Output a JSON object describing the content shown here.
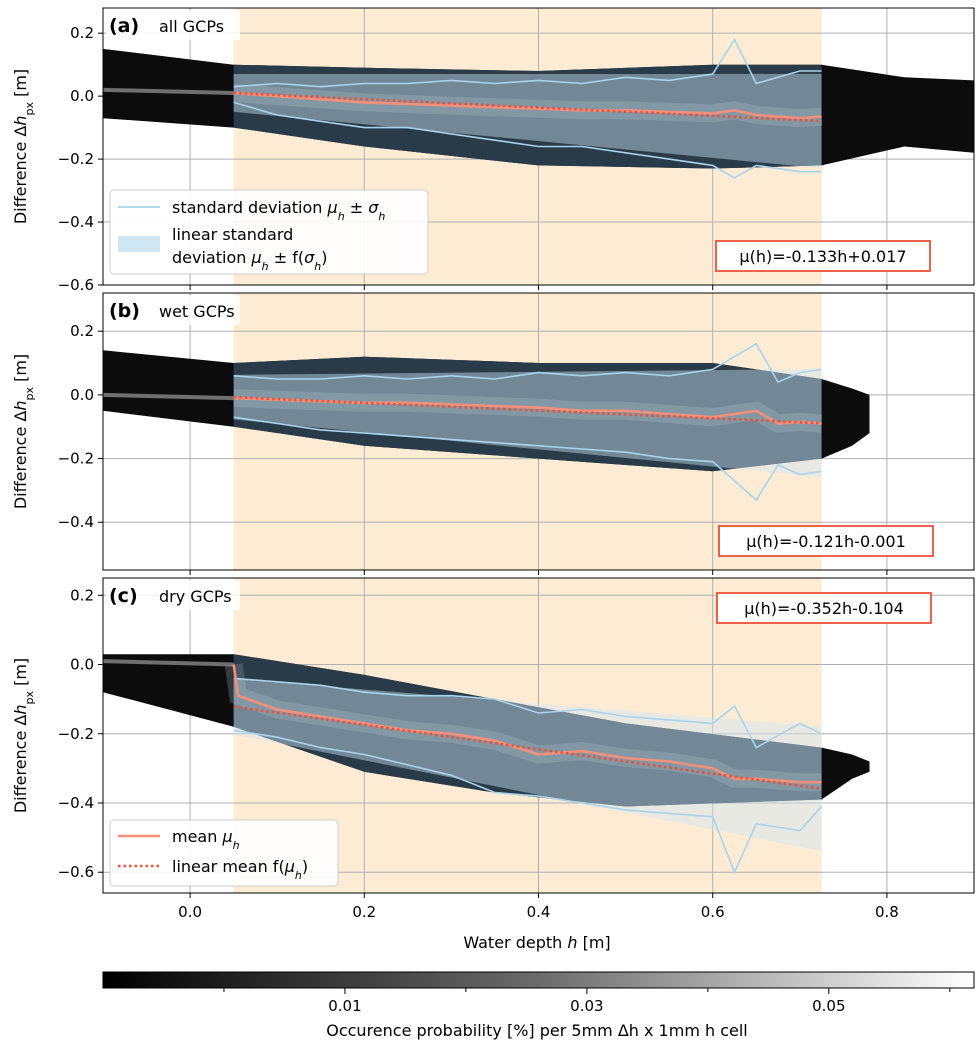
{
  "chart_data": {
    "type": "heatmap",
    "xlabel": "Water depth h [m]",
    "ylabel": "Difference Δh_px [m]",
    "xlim": [
      -0.1,
      0.9
    ],
    "x_ticks": [
      "0.0",
      "0.2",
      "0.4",
      "0.6",
      "0.8"
    ],
    "x_tick_values": [
      0.0,
      0.2,
      0.4,
      0.6,
      0.8
    ],
    "grid": true,
    "shaded_x_range": [
      0.05,
      0.725
    ],
    "shaded_color": "#fdebd3",
    "colors": {
      "mean": "#f4907a",
      "linear_mean": "#e8523b",
      "std": "#a9d3ec",
      "linear_std": "#cfe6f5",
      "eq_box": "#e8523b",
      "point_cloud": "#0c0c0c",
      "point_cloud_fit": "#2c4050"
    },
    "panels": [
      {
        "id": "a",
        "letter": "(a)",
        "label": "all GCPs",
        "equation": "μ(h)=-0.133h+0.017",
        "equation_position": "bottom-right",
        "ylim": [
          -0.6,
          0.28
        ],
        "y_tick_values": [
          0.2,
          0.0,
          -0.2,
          -0.4,
          -0.6
        ],
        "y_ticks": [
          "0.2",
          "0.0",
          "−0.2",
          "−0.4",
          "−0.6"
        ],
        "legend_position": "bottom-left",
        "legend": [
          {
            "label": "standard deviation μh ± σh",
            "style": "line"
          },
          {
            "label_line1": "linear standard",
            "label_line2": "deviation μh ± f(σh)",
            "style": "patch"
          }
        ],
        "linear_mean": {
          "slope": -0.133,
          "intercept": 0.017
        },
        "linear_std_half_width": [
          0.06,
          0.15
        ],
        "mean": {
          "x": [
            0.05,
            0.1,
            0.15,
            0.2,
            0.25,
            0.3,
            0.35,
            0.4,
            0.45,
            0.5,
            0.55,
            0.6,
            0.625,
            0.65,
            0.7,
            0.725
          ],
          "y": [
            0.01,
            0.0,
            -0.01,
            -0.02,
            -0.025,
            -0.03,
            -0.035,
            -0.04,
            -0.045,
            -0.045,
            -0.05,
            -0.055,
            -0.045,
            -0.06,
            -0.07,
            -0.065
          ]
        },
        "std_upper": {
          "x": [
            0.05,
            0.1,
            0.15,
            0.2,
            0.25,
            0.3,
            0.35,
            0.4,
            0.45,
            0.5,
            0.55,
            0.6,
            0.625,
            0.65,
            0.7,
            0.725
          ],
          "y": [
            0.03,
            0.04,
            0.03,
            0.04,
            0.04,
            0.05,
            0.04,
            0.05,
            0.04,
            0.06,
            0.05,
            0.07,
            0.18,
            0.04,
            0.08,
            0.08
          ]
        },
        "std_lower": {
          "x": [
            0.05,
            0.1,
            0.15,
            0.2,
            0.25,
            0.3,
            0.35,
            0.4,
            0.45,
            0.5,
            0.55,
            0.6,
            0.625,
            0.65,
            0.7,
            0.725
          ],
          "y": [
            -0.02,
            -0.06,
            -0.08,
            -0.1,
            -0.1,
            -0.12,
            -0.14,
            -0.16,
            -0.16,
            -0.18,
            -0.2,
            -0.22,
            -0.26,
            -0.22,
            -0.24,
            -0.24
          ]
        },
        "cloud": {
          "x": [
            -0.1,
            0.05,
            0.2,
            0.4,
            0.6,
            0.725,
            0.82,
            0.9
          ],
          "upper": [
            0.15,
            0.1,
            0.09,
            0.08,
            0.1,
            0.1,
            0.06,
            0.05
          ],
          "lower": [
            -0.07,
            -0.1,
            -0.16,
            -0.22,
            -0.23,
            -0.22,
            -0.16,
            -0.18
          ]
        }
      },
      {
        "id": "b",
        "letter": "(b)",
        "label": "wet GCPs",
        "equation": "μ(h)=-0.121h-0.001",
        "equation_position": "bottom-right",
        "ylim": [
          -0.55,
          0.32
        ],
        "y_tick_values": [
          0.2,
          0.0,
          -0.2,
          -0.4
        ],
        "y_ticks": [
          "0.2",
          "0.0",
          "−0.2",
          "−0.4"
        ],
        "linear_mean": {
          "slope": -0.121,
          "intercept": -0.001
        },
        "linear_std_half_width": [
          0.07,
          0.17
        ],
        "mean": {
          "x": [
            0.05,
            0.1,
            0.15,
            0.2,
            0.25,
            0.3,
            0.35,
            0.4,
            0.45,
            0.5,
            0.55,
            0.6,
            0.65,
            0.675,
            0.7,
            0.725
          ],
          "y": [
            -0.01,
            -0.015,
            -0.02,
            -0.025,
            -0.025,
            -0.03,
            -0.035,
            -0.04,
            -0.05,
            -0.05,
            -0.06,
            -0.07,
            -0.05,
            -0.09,
            -0.085,
            -0.09
          ]
        },
        "std_upper": {
          "x": [
            0.05,
            0.1,
            0.15,
            0.2,
            0.25,
            0.3,
            0.35,
            0.4,
            0.45,
            0.5,
            0.55,
            0.6,
            0.65,
            0.675,
            0.7,
            0.725
          ],
          "y": [
            0.06,
            0.05,
            0.05,
            0.06,
            0.05,
            0.06,
            0.05,
            0.07,
            0.06,
            0.07,
            0.06,
            0.08,
            0.16,
            0.04,
            0.07,
            0.08
          ]
        },
        "std_lower": {
          "x": [
            0.05,
            0.1,
            0.15,
            0.2,
            0.25,
            0.3,
            0.35,
            0.4,
            0.45,
            0.5,
            0.55,
            0.6,
            0.65,
            0.675,
            0.7,
            0.725
          ],
          "y": [
            -0.07,
            -0.09,
            -0.11,
            -0.12,
            -0.13,
            -0.14,
            -0.15,
            -0.16,
            -0.17,
            -0.18,
            -0.2,
            -0.21,
            -0.33,
            -0.22,
            -0.25,
            -0.24
          ]
        },
        "cloud": {
          "x": [
            -0.1,
            0.05,
            0.2,
            0.4,
            0.6,
            0.725,
            0.76,
            0.78
          ],
          "upper": [
            0.14,
            0.1,
            0.12,
            0.1,
            0.1,
            0.05,
            0.02,
            0.0
          ],
          "lower": [
            -0.05,
            -0.1,
            -0.16,
            -0.2,
            -0.24,
            -0.2,
            -0.16,
            -0.12
          ]
        }
      },
      {
        "id": "c",
        "letter": "(c)",
        "label": "dry GCPs",
        "equation": "μ(h)=-0.352h-0.104",
        "equation_position": "top-right",
        "ylim": [
          -0.66,
          0.25
        ],
        "y_tick_values": [
          0.2,
          0.0,
          -0.2,
          -0.4,
          -0.6
        ],
        "y_ticks": [
          "0.2",
          "0.0",
          "−0.2",
          "−0.4",
          "−0.6"
        ],
        "legend_position": "bottom-left",
        "legend": [
          {
            "label": "mean μh",
            "style": "line"
          },
          {
            "label": "linear mean f(μh)",
            "style": "dotted"
          }
        ],
        "linear_mean": {
          "slope": -0.352,
          "intercept": -0.104
        },
        "linear_std_half_width": [
          0.08,
          0.18
        ],
        "mean": {
          "x": [
            0.05,
            0.055,
            0.1,
            0.15,
            0.2,
            0.25,
            0.3,
            0.35,
            0.4,
            0.45,
            0.5,
            0.55,
            0.6,
            0.625,
            0.65,
            0.7,
            0.725
          ],
          "y": [
            0.0,
            -0.09,
            -0.13,
            -0.15,
            -0.17,
            -0.19,
            -0.2,
            -0.22,
            -0.26,
            -0.25,
            -0.27,
            -0.28,
            -0.3,
            -0.33,
            -0.33,
            -0.34,
            -0.34
          ]
        },
        "std_upper": {
          "x": [
            0.05,
            0.1,
            0.15,
            0.2,
            0.25,
            0.3,
            0.35,
            0.4,
            0.45,
            0.5,
            0.55,
            0.6,
            0.625,
            0.65,
            0.7,
            0.725
          ],
          "y": [
            -0.04,
            -0.05,
            -0.06,
            -0.08,
            -0.09,
            -0.09,
            -0.1,
            -0.14,
            -0.13,
            -0.15,
            -0.16,
            -0.17,
            -0.12,
            -0.24,
            -0.17,
            -0.2
          ]
        },
        "std_lower": {
          "x": [
            0.05,
            0.1,
            0.15,
            0.2,
            0.25,
            0.3,
            0.35,
            0.4,
            0.45,
            0.5,
            0.55,
            0.6,
            0.625,
            0.65,
            0.7,
            0.725
          ],
          "y": [
            -0.19,
            -0.21,
            -0.24,
            -0.26,
            -0.29,
            -0.32,
            -0.37,
            -0.38,
            -0.4,
            -0.42,
            -0.43,
            -0.44,
            -0.6,
            -0.46,
            -0.48,
            -0.41
          ]
        },
        "cloud": {
          "x": [
            -0.1,
            0.05,
            0.2,
            0.35,
            0.5,
            0.725,
            0.76,
            0.78
          ],
          "upper": [
            0.03,
            0.03,
            -0.03,
            -0.1,
            -0.17,
            -0.24,
            -0.26,
            -0.28
          ],
          "lower": [
            -0.08,
            -0.18,
            -0.31,
            -0.37,
            -0.41,
            -0.39,
            -0.33,
            -0.31
          ]
        }
      }
    ],
    "colorbar": {
      "label": "Occurence probability [%] per 5mm Δh x 1mm h cell",
      "ticks": [
        "0.01",
        "0.03",
        "0.05"
      ],
      "tick_values": [
        0.01,
        0.03,
        0.05
      ],
      "range": [
        -0.01,
        0.062
      ]
    }
  }
}
